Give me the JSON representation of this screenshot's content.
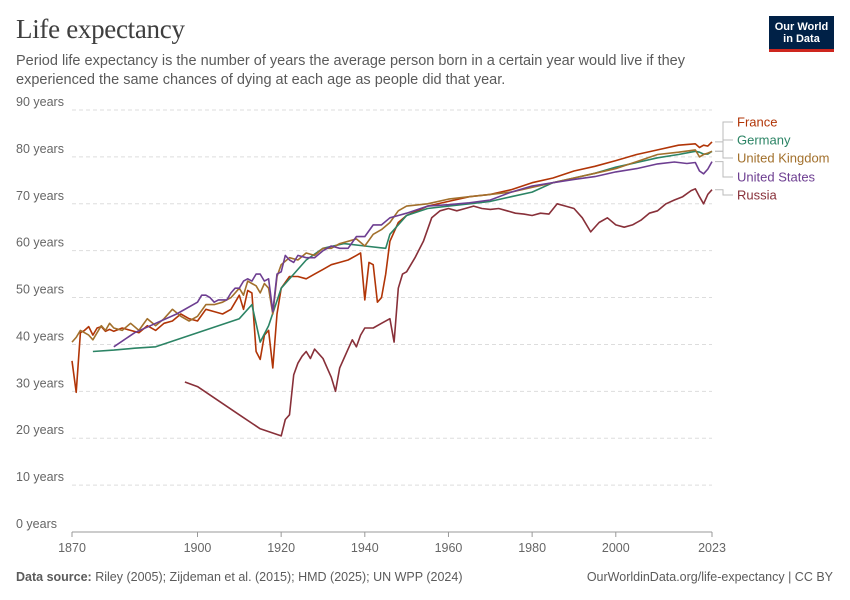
{
  "header": {
    "title": "Life expectancy",
    "subtitle": "Period life expectancy is the number of years the average person born in a certain year would live if they experienced the same chances of dying at each age as people did that year."
  },
  "logo": {
    "line1": "Our World",
    "line2": "in Data",
    "bg_color": "#002147",
    "accent_color": "#ce261e"
  },
  "footer": {
    "source_label": "Data source:",
    "source_text": "Riley (2005); Zijdeman et al. (2015); HMD (2025); UN WPP (2024)",
    "credit": "OurWorldinData.org/life-expectancy | CC BY"
  },
  "chart_data": {
    "type": "line",
    "title": "Life expectancy",
    "ylim": [
      0,
      90
    ],
    "xlim": [
      1870,
      2023
    ],
    "y_ticks": [
      0,
      10,
      20,
      30,
      40,
      50,
      60,
      70,
      80,
      90
    ],
    "y_tick_labels": [
      "0 years",
      "10 years",
      "20 years",
      "30 years",
      "40 years",
      "50 years",
      "60 years",
      "70 years",
      "80 years",
      "90 years"
    ],
    "x_ticks": [
      1870,
      1900,
      1920,
      1940,
      1960,
      1980,
      2000,
      2023
    ],
    "x_tick_labels": [
      "1870",
      "1900",
      "1920",
      "1940",
      "1960",
      "1980",
      "2000",
      "2023"
    ],
    "grid": "horizontal dashed",
    "legend": "right",
    "series": [
      {
        "name": "France",
        "color": "#b13507",
        "x": [
          1870,
          1871,
          1872,
          1873,
          1874,
          1875,
          1876,
          1877,
          1878,
          1879,
          1880,
          1882,
          1884,
          1886,
          1888,
          1890,
          1892,
          1894,
          1896,
          1898,
          1900,
          1902,
          1904,
          1906,
          1908,
          1910,
          1911,
          1912,
          1913,
          1914,
          1915,
          1916,
          1917,
          1918,
          1919,
          1920,
          1922,
          1924,
          1926,
          1928,
          1930,
          1932,
          1934,
          1936,
          1938,
          1939,
          1940,
          1941,
          1942,
          1943,
          1944,
          1945,
          1946,
          1948,
          1950,
          1955,
          1960,
          1965,
          1970,
          1975,
          1980,
          1985,
          1990,
          1995,
          2000,
          2005,
          2010,
          2015,
          2019,
          2020,
          2021,
          2022,
          2023
        ],
        "y": [
          36.5,
          29.8,
          42.5,
          43.0,
          43.8,
          42.0,
          43.5,
          43.8,
          42.8,
          43.2,
          42.8,
          43.5,
          43.0,
          42.5,
          44.0,
          43.0,
          44.5,
          45.0,
          46.5,
          45.5,
          45.0,
          47.5,
          47.0,
          46.5,
          47.5,
          50.5,
          47.5,
          51.5,
          51.0,
          38.5,
          36.8,
          42.0,
          43.0,
          35.0,
          46.5,
          52.0,
          54.5,
          54.5,
          54.0,
          55.0,
          56.0,
          57.0,
          57.5,
          58.0,
          59.0,
          59.5,
          49.5,
          57.5,
          57.0,
          49.0,
          50.0,
          55.0,
          62.0,
          66.0,
          67.5,
          69.5,
          70.5,
          71.5,
          72.0,
          73.0,
          74.5,
          75.5,
          77.0,
          78.0,
          79.2,
          80.5,
          81.5,
          82.5,
          82.8,
          82.0,
          82.5,
          82.3,
          83.2
        ]
      },
      {
        "name": "Germany",
        "color": "#2c8465",
        "x": [
          1875,
          1880,
          1885,
          1890,
          1895,
          1900,
          1905,
          1910,
          1913,
          1915,
          1917,
          1920,
          1923,
          1926,
          1930,
          1935,
          1940,
          1945,
          1946,
          1950,
          1955,
          1960,
          1965,
          1970,
          1975,
          1980,
          1985,
          1990,
          1995,
          2000,
          2005,
          2010,
          2015,
          2019,
          2020,
          2021,
          2022,
          2023
        ],
        "y": [
          38.5,
          38.8,
          39.2,
          39.5,
          41.0,
          42.5,
          44.0,
          45.5,
          48.5,
          40.5,
          44.0,
          52.0,
          55.0,
          58.0,
          60.5,
          61.5,
          61.0,
          60.5,
          63.5,
          67.5,
          69.0,
          69.5,
          70.0,
          70.5,
          71.5,
          72.5,
          74.5,
          75.5,
          76.5,
          77.8,
          78.8,
          79.8,
          80.5,
          81.2,
          81.0,
          80.6,
          80.6,
          81.2
        ]
      },
      {
        "name": "United Kingdom",
        "color": "#a2702c",
        "x": [
          1870,
          1871,
          1872,
          1873,
          1874,
          1875,
          1876,
          1877,
          1878,
          1879,
          1880,
          1882,
          1884,
          1886,
          1888,
          1890,
          1892,
          1894,
          1896,
          1898,
          1900,
          1902,
          1904,
          1906,
          1908,
          1910,
          1911,
          1912,
          1913,
          1914,
          1915,
          1916,
          1917,
          1918,
          1919,
          1920,
          1922,
          1924,
          1926,
          1928,
          1930,
          1932,
          1934,
          1936,
          1938,
          1940,
          1942,
          1944,
          1946,
          1948,
          1950,
          1955,
          1960,
          1965,
          1970,
          1975,
          1980,
          1985,
          1990,
          1995,
          2000,
          2005,
          2010,
          2015,
          2019,
          2020,
          2021,
          2022,
          2023
        ],
        "y": [
          40.5,
          41.5,
          43.0,
          42.5,
          42.0,
          41.0,
          42.5,
          44.0,
          43.0,
          44.5,
          43.5,
          43.0,
          44.5,
          43.0,
          45.5,
          44.0,
          45.5,
          47.5,
          46.0,
          45.0,
          46.0,
          48.5,
          48.5,
          49.0,
          50.0,
          52.0,
          50.5,
          53.5,
          53.0,
          52.5,
          51.0,
          53.0,
          52.0,
          46.5,
          54.5,
          57.0,
          58.5,
          58.0,
          59.5,
          59.0,
          60.5,
          60.5,
          61.5,
          62.0,
          62.5,
          61.0,
          63.5,
          64.5,
          66.0,
          68.5,
          69.5,
          70.0,
          71.0,
          71.5,
          72.0,
          72.5,
          73.5,
          74.5,
          75.5,
          76.5,
          77.5,
          79.0,
          80.5,
          81.0,
          81.5,
          80.0,
          80.5,
          80.8,
          81.2
        ]
      },
      {
        "name": "United States",
        "color": "#6d3e91",
        "x": [
          1880,
          1885,
          1890,
          1895,
          1900,
          1901,
          1902,
          1903,
          1904,
          1905,
          1906,
          1907,
          1908,
          1909,
          1910,
          1911,
          1912,
          1913,
          1914,
          1915,
          1916,
          1917,
          1918,
          1919,
          1920,
          1921,
          1922,
          1923,
          1924,
          1926,
          1928,
          1930,
          1932,
          1934,
          1936,
          1938,
          1940,
          1942,
          1944,
          1946,
          1948,
          1950,
          1955,
          1960,
          1965,
          1970,
          1975,
          1980,
          1985,
          1990,
          1995,
          2000,
          2005,
          2010,
          2014,
          2017,
          2019,
          2020,
          2021,
          2022,
          2023
        ],
        "y": [
          39.5,
          42.5,
          44.5,
          46.5,
          49.0,
          50.5,
          50.5,
          50.0,
          49.0,
          49.5,
          49.5,
          49.5,
          51.0,
          52.0,
          52.0,
          53.5,
          54.0,
          53.5,
          55.0,
          55.0,
          53.5,
          54.0,
          47.0,
          55.0,
          55.5,
          59.0,
          58.0,
          57.5,
          59.0,
          58.5,
          58.5,
          60.0,
          61.0,
          60.5,
          60.5,
          63.0,
          63.0,
          65.5,
          65.5,
          67.0,
          67.5,
          68.0,
          69.5,
          69.8,
          70.2,
          70.8,
          72.5,
          73.8,
          74.5,
          75.2,
          75.8,
          76.8,
          77.5,
          78.5,
          78.9,
          78.6,
          78.8,
          77.0,
          76.4,
          77.4,
          79.0
        ]
      },
      {
        "name": "Russia",
        "color": "#883039",
        "x": [
          1897,
          1900,
          1905,
          1910,
          1915,
          1920,
          1921,
          1922,
          1923,
          1924,
          1925,
          1926,
          1927,
          1928,
          1929,
          1930,
          1932,
          1933,
          1934,
          1935,
          1936,
          1937,
          1938,
          1939,
          1940,
          1942,
          1944,
          1946,
          1947,
          1948,
          1949,
          1950,
          1952,
          1954,
          1956,
          1958,
          1960,
          1962,
          1964,
          1966,
          1968,
          1970,
          1972,
          1974,
          1976,
          1978,
          1980,
          1982,
          1984,
          1986,
          1988,
          1990,
          1992,
          1994,
          1996,
          1998,
          2000,
          2002,
          2004,
          2006,
          2008,
          2010,
          2012,
          2014,
          2016,
          2018,
          2019,
          2020,
          2021,
          2022,
          2023
        ],
        "y": [
          32.0,
          31.0,
          28.0,
          25.0,
          22.0,
          20.5,
          24.0,
          25.0,
          33.5,
          36.0,
          37.5,
          38.5,
          37.0,
          39.0,
          38.0,
          37.0,
          33.0,
          30.0,
          35.0,
          37.0,
          39.0,
          41.0,
          39.5,
          42.0,
          43.5,
          43.5,
          44.5,
          45.5,
          40.5,
          52.0,
          55.0,
          55.5,
          58.5,
          62.0,
          67.0,
          68.5,
          69.0,
          68.5,
          69.0,
          69.5,
          69.0,
          68.8,
          69.0,
          68.5,
          68.0,
          67.8,
          67.5,
          68.0,
          67.8,
          70.0,
          69.5,
          69.0,
          67.0,
          64.0,
          66.0,
          67.0,
          65.5,
          65.0,
          65.5,
          66.5,
          68.0,
          68.5,
          70.0,
          70.8,
          71.5,
          72.8,
          73.2,
          71.5,
          70.0,
          72.0,
          73.0
        ]
      }
    ]
  }
}
